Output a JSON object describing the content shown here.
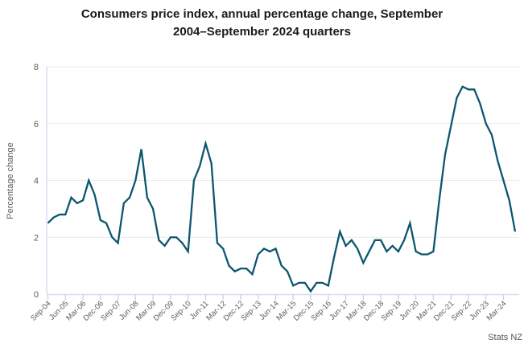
{
  "header": {
    "title_lines": [
      "Consumers price index, annual percentage change, September",
      "2004–September 2024 quarters"
    ]
  },
  "source_label": "Stats NZ",
  "chart_data": {
    "type": "line",
    "title": "Consumers price index, annual percentage change, September 2004–September 2024 quarters",
    "xlabel": "",
    "ylabel": "Percentage change",
    "ylim": [
      0,
      8
    ],
    "yticks": [
      0,
      2,
      4,
      6,
      8
    ],
    "grid": true,
    "legend": false,
    "legend_position": "none",
    "line_color": "#0d566f",
    "grid_color": "#eaeaea",
    "axis_border_color": "#d8dcef",
    "tick_color": "#c7d0ea",
    "label_color": "#5c5c5c",
    "source": "Stats NZ",
    "xtick_step": 3,
    "xtick_labels": [
      "Sep-04",
      "Jun-05",
      "Mar-06",
      "Dec-06",
      "Sep-07",
      "Jun-08",
      "Mar-09",
      "Dec-09",
      "Sep-10",
      "Jun-11",
      "Mar-12",
      "Dec-12",
      "Sep-13",
      "Jun-14",
      "Mar-15",
      "Dec-15",
      "Sep-16",
      "Jun-17",
      "Mar-18",
      "Dec-18",
      "Sep-19",
      "Jun-20",
      "Mar-21",
      "Dec-21",
      "Sep-22",
      "Jun-23",
      "Mar-24"
    ],
    "x": [
      "Sep-04",
      "Dec-04",
      "Mar-05",
      "Jun-05",
      "Sep-05",
      "Dec-05",
      "Mar-06",
      "Jun-06",
      "Sep-06",
      "Dec-06",
      "Mar-07",
      "Jun-07",
      "Sep-07",
      "Dec-07",
      "Mar-08",
      "Jun-08",
      "Sep-08",
      "Dec-08",
      "Mar-09",
      "Jun-09",
      "Sep-09",
      "Dec-09",
      "Mar-10",
      "Jun-10",
      "Sep-10",
      "Dec-10",
      "Mar-11",
      "Jun-11",
      "Sep-11",
      "Dec-11",
      "Mar-12",
      "Jun-12",
      "Sep-12",
      "Dec-12",
      "Mar-13",
      "Jun-13",
      "Sep-13",
      "Dec-13",
      "Mar-14",
      "Jun-14",
      "Sep-14",
      "Dec-14",
      "Mar-15",
      "Jun-15",
      "Sep-15",
      "Dec-15",
      "Mar-16",
      "Jun-16",
      "Sep-16",
      "Dec-16",
      "Mar-17",
      "Jun-17",
      "Sep-17",
      "Dec-17",
      "Mar-18",
      "Jun-18",
      "Sep-18",
      "Dec-18",
      "Mar-19",
      "Jun-19",
      "Sep-19",
      "Dec-19",
      "Mar-20",
      "Jun-20",
      "Sep-20",
      "Dec-20",
      "Mar-21",
      "Jun-21",
      "Sep-21",
      "Dec-21",
      "Mar-22",
      "Jun-22",
      "Sep-22",
      "Dec-22",
      "Mar-23",
      "Jun-23",
      "Sep-23",
      "Dec-23",
      "Mar-24",
      "Jun-24",
      "Sep-24"
    ],
    "values": [
      2.5,
      2.7,
      2.8,
      2.8,
      3.4,
      3.2,
      3.3,
      4.0,
      3.5,
      2.6,
      2.5,
      2.0,
      1.8,
      3.2,
      3.4,
      4.0,
      5.1,
      3.4,
      3.0,
      1.9,
      1.7,
      2.0,
      2.0,
      1.8,
      1.5,
      4.0,
      4.5,
      5.3,
      4.6,
      1.8,
      1.6,
      1.0,
      0.8,
      0.9,
      0.9,
      0.7,
      1.4,
      1.6,
      1.5,
      1.6,
      1.0,
      0.8,
      0.3,
      0.4,
      0.4,
      0.1,
      0.4,
      0.4,
      0.3,
      1.3,
      2.2,
      1.7,
      1.9,
      1.6,
      1.1,
      1.5,
      1.9,
      1.9,
      1.5,
      1.7,
      1.5,
      1.9,
      2.5,
      1.5,
      1.4,
      1.4,
      1.5,
      3.3,
      4.9,
      5.9,
      6.9,
      7.3,
      7.2,
      7.2,
      6.7,
      6.0,
      5.6,
      4.7,
      4.0,
      3.3,
      2.2
    ]
  }
}
